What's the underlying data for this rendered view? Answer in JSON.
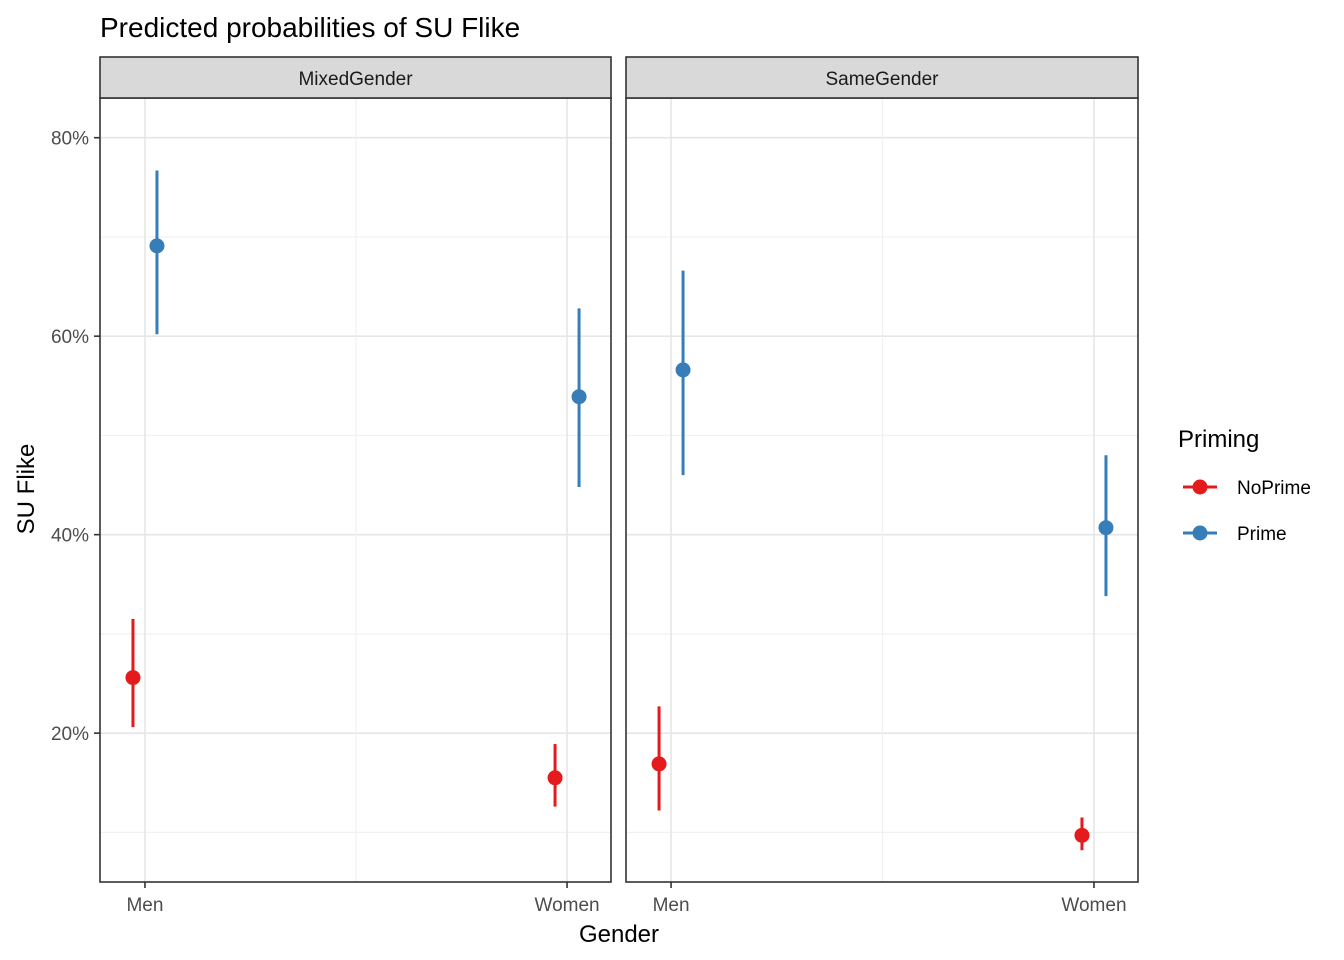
{
  "chart_data": {
    "type": "scatter",
    "title": "Predicted probabilities of SU Flike",
    "xlabel": "Gender",
    "ylabel": "SU Flike",
    "categories": [
      "Men",
      "Women"
    ],
    "ylim": [
      0.05,
      0.84
    ],
    "y_ticks": [
      0.2,
      0.4,
      0.6,
      0.8
    ],
    "y_tick_labels": [
      "20%",
      "40%",
      "60%",
      "80%"
    ],
    "grid": true,
    "legend": {
      "title": "Priming",
      "position": "right",
      "entries": [
        "NoPrime",
        "Prime"
      ]
    },
    "colors": {
      "NoPrime": "#e41a1c",
      "Prime": "#377eb8"
    },
    "facets": [
      {
        "label": "MixedGender",
        "series": [
          {
            "name": "NoPrime",
            "values": [
              0.256,
              0.155
            ],
            "lower": [
              0.206,
              0.126
            ],
            "upper": [
              0.315,
              0.189
            ]
          },
          {
            "name": "Prime",
            "values": [
              0.691,
              0.539
            ],
            "lower": [
              0.602,
              0.448
            ],
            "upper": [
              0.767,
              0.628
            ]
          }
        ]
      },
      {
        "label": "SameGender",
        "series": [
          {
            "name": "NoPrime",
            "values": [
              0.169,
              0.097
            ],
            "lower": [
              0.122,
              0.082
            ],
            "upper": [
              0.227,
              0.115
            ]
          },
          {
            "name": "Prime",
            "values": [
              0.566,
              0.407
            ],
            "lower": [
              0.46,
              0.338
            ],
            "upper": [
              0.666,
              0.48
            ]
          }
        ]
      }
    ]
  }
}
